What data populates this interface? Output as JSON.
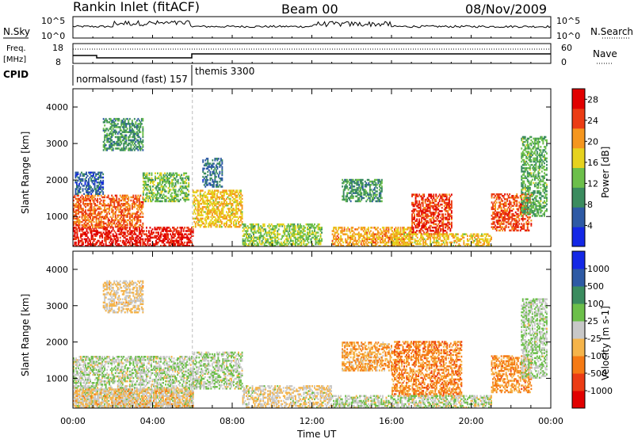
{
  "header": {
    "station": "Rankin Inlet (fitACF)",
    "beam": "Beam 00",
    "date": "08/Nov/2009"
  },
  "strip": {
    "nsky_label": "N.Sky",
    "nsky_ticks": [
      "10^5",
      "10^0"
    ],
    "nsearch_label": "N.Search",
    "freq_label_1": "Freq.",
    "freq_label_2": "[MHz]",
    "freq_ticks": [
      "18",
      "8"
    ],
    "nave_label": "Nave",
    "nave_ticks": [
      "60",
      "0"
    ],
    "cpid_label": "CPID",
    "cpid_1": "normalsound (fast) 157",
    "cpid_2": "themis 3300"
  },
  "axes": {
    "xlabel": "Time UT",
    "ylabel": "Slant Range [km]",
    "xticks": [
      "00:00",
      "04:00",
      "08:00",
      "12:00",
      "16:00",
      "20:00",
      "00:00"
    ],
    "xtick_hours": [
      0,
      4,
      8,
      12,
      16,
      20,
      24
    ],
    "yticks": [
      1000,
      2000,
      3000,
      4000
    ],
    "ylim": [
      180,
      4500
    ],
    "xlim_hours": [
      0,
      24
    ]
  },
  "chart_data": [
    {
      "type": "heatmap",
      "title": "",
      "x_unit": "hours UT",
      "y_unit": "km",
      "colorbar_label": "Power [dB]",
      "colorbar_ticks": [
        4,
        8,
        12,
        16,
        20,
        24,
        28
      ],
      "colorbar_range": [
        0,
        30
      ],
      "colors": [
        "#1428e6",
        "#2e5aa5",
        "#3b8c5f",
        "#6cbf4a",
        "#e6d21e",
        "#f5961e",
        "#eb3c14",
        "#e10000"
      ],
      "regions": [
        {
          "t0": 0.0,
          "t1": 6.0,
          "r0": 180,
          "r1": 700,
          "value": 27
        },
        {
          "t0": 0.0,
          "t1": 3.5,
          "r0": 700,
          "r1": 1600,
          "value": 23
        },
        {
          "t0": 0.1,
          "t1": 1.5,
          "r0": 1600,
          "r1": 2200,
          "value": 6
        },
        {
          "t0": 1.5,
          "t1": 3.5,
          "r0": 2800,
          "r1": 3700,
          "value": 10
        },
        {
          "t0": 3.5,
          "t1": 5.8,
          "r0": 1400,
          "r1": 2200,
          "value": 13
        },
        {
          "t0": 6.0,
          "t1": 8.5,
          "r0": 700,
          "r1": 1700,
          "value": 18
        },
        {
          "t0": 6.5,
          "t1": 7.5,
          "r0": 1800,
          "r1": 2600,
          "value": 7
        },
        {
          "t0": 8.5,
          "t1": 12.5,
          "r0": 180,
          "r1": 800,
          "value": 14
        },
        {
          "t0": 13.5,
          "t1": 15.5,
          "r0": 1400,
          "r1": 2000,
          "value": 10
        },
        {
          "t0": 13.0,
          "t1": 17.0,
          "r0": 180,
          "r1": 700,
          "value": 20
        },
        {
          "t0": 17.0,
          "t1": 19.0,
          "r0": 500,
          "r1": 1600,
          "value": 25
        },
        {
          "t0": 16.0,
          "t1": 21.0,
          "r0": 180,
          "r1": 500,
          "value": 18
        },
        {
          "t0": 21.0,
          "t1": 23.0,
          "r0": 600,
          "r1": 1600,
          "value": 24
        },
        {
          "t0": 22.5,
          "t1": 23.8,
          "r0": 1000,
          "r1": 3200,
          "value": 12
        }
      ]
    },
    {
      "type": "heatmap",
      "title": "",
      "x_unit": "hours UT",
      "y_unit": "km",
      "colorbar_label": "Velocity [m s-1]",
      "colorbar_ticks": [
        "1000",
        "500",
        "100",
        "25",
        "-25",
        "-100",
        "-500",
        "-1000"
      ],
      "colorbar_range": [
        -1000,
        1000
      ],
      "colors": [
        "#e10000",
        "#eb3c14",
        "#f57a14",
        "#f5b44a",
        "#c8c8c8",
        "#6cbf4a",
        "#3b8c5f",
        "#2e5aa5",
        "#1428e6"
      ],
      "regions": [
        {
          "t0": 0.0,
          "t1": 6.0,
          "r0": 180,
          "r1": 1600,
          "value": 60
        },
        {
          "t0": 0.0,
          "t1": 6.0,
          "r0": 180,
          "r1": 700,
          "value": -150
        },
        {
          "t0": 1.5,
          "t1": 3.5,
          "r0": 2800,
          "r1": 3700,
          "value": -120
        },
        {
          "t0": 6.0,
          "t1": 8.5,
          "r0": 700,
          "r1": 1700,
          "value": 80
        },
        {
          "t0": 8.5,
          "t1": 13.0,
          "r0": 180,
          "r1": 800,
          "value": -80
        },
        {
          "t0": 13.5,
          "t1": 16.0,
          "r0": 1200,
          "r1": 2000,
          "value": -300
        },
        {
          "t0": 16.0,
          "t1": 19.5,
          "r0": 500,
          "r1": 2000,
          "value": -400
        },
        {
          "t0": 13.0,
          "t1": 21.0,
          "r0": 180,
          "r1": 500,
          "value": 50
        },
        {
          "t0": 21.0,
          "t1": 23.0,
          "r0": 600,
          "r1": 1600,
          "value": -350
        },
        {
          "t0": 22.5,
          "t1": 23.8,
          "r0": 1000,
          "r1": 3200,
          "value": 100
        }
      ]
    }
  ]
}
